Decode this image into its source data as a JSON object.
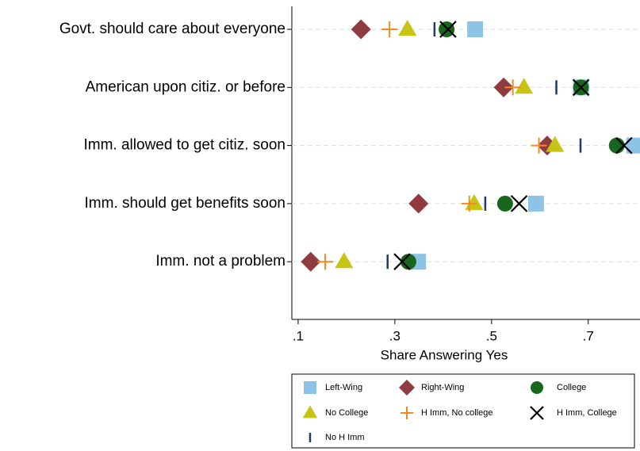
{
  "chart_data": {
    "type": "dot",
    "categories": [
      "Govt. should care about everyone",
      "American upon citiz. or before",
      "Imm. allowed to get citiz. soon",
      "Imm. should get benefits soon",
      "Imm. not a problem"
    ],
    "xlabel": "Share Answering Yes",
    "xlim": [
      0.087,
      0.807
    ],
    "xticks": [
      {
        "value": 0.1,
        "label": ".1"
      },
      {
        "value": 0.3,
        "label": ".3"
      },
      {
        "value": 0.5,
        "label": ".5"
      },
      {
        "value": 0.7,
        "label": ".7"
      }
    ],
    "grid": true,
    "series": [
      {
        "name": "Left-Wing",
        "color": "#8ec3e8",
        "marker": "square",
        "values": [
          0.466,
          0.685,
          0.795,
          0.592,
          0.348
        ]
      },
      {
        "name": "Right-Wing",
        "color": "#8f3b3f",
        "marker": "diamond",
        "values": [
          0.23,
          0.525,
          0.615,
          0.349,
          0.126
        ]
      },
      {
        "name": "College",
        "color": "#17661b",
        "marker": "circle",
        "values": [
          0.407,
          0.685,
          0.759,
          0.528,
          0.328
        ]
      },
      {
        "name": "No College",
        "color": "#c6c415",
        "marker": "triangle",
        "values": [
          0.326,
          0.567,
          0.631,
          0.464,
          0.195
        ]
      },
      {
        "name": "H Imm, No college",
        "color": "#f7881f",
        "marker": "plus",
        "values": [
          0.289,
          0.544,
          0.598,
          0.454,
          0.156
        ]
      },
      {
        "name": "H Imm, College",
        "color": "#000000",
        "marker": "x",
        "values": [
          0.41,
          0.685,
          0.774,
          0.557,
          0.315
        ]
      },
      {
        "name": "No H Imm",
        "color": "#1c3b68",
        "marker": "vline",
        "values": [
          0.382,
          0.634,
          0.684,
          0.487,
          0.285
        ]
      }
    ]
  }
}
